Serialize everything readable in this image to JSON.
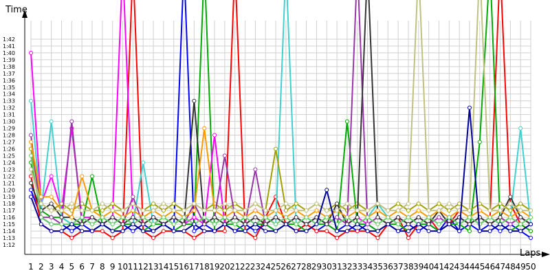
{
  "chart_data": {
    "type": "line",
    "ylabel": "Time",
    "xlabel": "Laps",
    "x": [
      1,
      2,
      3,
      4,
      5,
      6,
      7,
      8,
      9,
      10,
      11,
      12,
      13,
      14,
      15,
      16,
      17,
      18,
      19,
      20,
      21,
      22,
      23,
      24,
      25,
      26,
      27,
      28,
      29,
      30,
      31,
      32,
      33,
      34,
      35,
      36,
      37,
      38,
      39,
      40,
      41,
      42,
      43,
      44,
      45,
      46,
      47,
      48,
      49,
      50
    ],
    "y_tick_labels": [
      "1:12",
      "1:13",
      "1:14",
      "1:15",
      "1:16",
      "1:17",
      "1:18",
      "1:19",
      "1:20",
      "1:21",
      "1:22",
      "1:23",
      "1:24",
      "1:25",
      "1:26",
      "1:27",
      "1:28",
      "1:29",
      "1:30",
      "1:31",
      "1:32",
      "1:33",
      "1:34",
      "1:35",
      "1:36",
      "1:37",
      "1:38",
      "1:39",
      "1:40",
      "1:41",
      "1:42"
    ],
    "ylim": [
      71,
      105
    ],
    "xlim": [
      1,
      50
    ],
    "grid": true,
    "series": [
      {
        "color": "#0000ff",
        "values": [
          80,
          76,
          75,
          75,
          74,
          75,
          74,
          75,
          74,
          75,
          74,
          75,
          74,
          75,
          74,
          120,
          74,
          75,
          74,
          75,
          74,
          75,
          74,
          75,
          74,
          75,
          74,
          75,
          74,
          75,
          74,
          75,
          74,
          75,
          74,
          75,
          74,
          75,
          74,
          75,
          74,
          76,
          74,
          75,
          74,
          75,
          74,
          75,
          74,
          73
        ]
      },
      {
        "color": "#ff0000",
        "values": [
          82,
          75,
          74,
          74,
          73,
          74,
          74,
          74,
          73,
          74,
          120,
          74,
          73,
          74,
          74,
          74,
          73,
          74,
          74,
          74,
          120,
          74,
          73,
          76,
          79,
          75,
          74,
          75,
          74,
          74,
          73,
          74,
          74,
          74,
          73,
          75,
          76,
          73,
          75,
          76,
          74,
          75,
          77,
          76,
          75,
          76,
          120,
          78,
          75,
          74
        ]
      },
      {
        "color": "#00aa00",
        "values": [
          84,
          77,
          76,
          76,
          75,
          75,
          82,
          75,
          74,
          75,
          75,
          74,
          75,
          75,
          74,
          75,
          75,
          120,
          74,
          75,
          75,
          74,
          75,
          75,
          74,
          75,
          75,
          74,
          75,
          75,
          74,
          90,
          75,
          75,
          74,
          75,
          75,
          74,
          75,
          75,
          74,
          75,
          75,
          74,
          87,
          120,
          75,
          74,
          75,
          74
        ]
      },
      {
        "color": "#ff00ff",
        "values": [
          100,
          78,
          82,
          77,
          89,
          76,
          76,
          75,
          76,
          120,
          76,
          75,
          76,
          75,
          76,
          75,
          76,
          75,
          88,
          75,
          76,
          75,
          76,
          75,
          76,
          75,
          76,
          75,
          76,
          75,
          76,
          75,
          76,
          75,
          76,
          75,
          76,
          75,
          76,
          75,
          76,
          75,
          76,
          75,
          76,
          75,
          76,
          75,
          76,
          75
        ]
      },
      {
        "color": "#40d0d0",
        "values": [
          93,
          77,
          90,
          76,
          75,
          76,
          75,
          76,
          75,
          76,
          75,
          84,
          75,
          76,
          75,
          76,
          75,
          76,
          75,
          76,
          75,
          76,
          75,
          76,
          75,
          120,
          75,
          76,
          75,
          76,
          75,
          76,
          75,
          76,
          78,
          76,
          75,
          76,
          75,
          76,
          75,
          76,
          75,
          76,
          75,
          76,
          75,
          76,
          89,
          75
        ]
      },
      {
        "color": "#a0a000",
        "values": [
          86,
          78,
          77,
          78,
          77,
          78,
          77,
          77,
          78,
          77,
          78,
          77,
          78,
          77,
          78,
          77,
          78,
          77,
          78,
          77,
          78,
          77,
          78,
          77,
          86,
          77,
          78,
          77,
          78,
          77,
          78,
          77,
          78,
          77,
          78,
          77,
          78,
          77,
          78,
          77,
          78,
          77,
          78,
          77,
          78,
          77,
          78,
          77,
          78,
          77
        ]
      },
      {
        "color": "#9933aa",
        "values": [
          88,
          76,
          76,
          75,
          90,
          75,
          76,
          75,
          76,
          75,
          79,
          75,
          76,
          75,
          76,
          75,
          78,
          75,
          76,
          85,
          76,
          75,
          83,
          75,
          76,
          75,
          76,
          75,
          76,
          75,
          76,
          75,
          120,
          75,
          76,
          75,
          76,
          75,
          76,
          75,
          76,
          75,
          76,
          75,
          76,
          75,
          76,
          75,
          76,
          75
        ]
      },
      {
        "color": "#333333",
        "values": [
          81,
          77,
          78,
          76,
          76,
          75,
          76,
          75,
          76,
          75,
          76,
          75,
          76,
          75,
          76,
          75,
          93,
          75,
          76,
          75,
          76,
          75,
          76,
          75,
          76,
          75,
          76,
          75,
          76,
          75,
          78,
          75,
          76,
          120,
          76,
          75,
          76,
          75,
          76,
          75,
          77,
          75,
          76,
          75,
          76,
          75,
          76,
          79,
          76,
          75
        ]
      },
      {
        "color": "#ff9900",
        "values": [
          87,
          79,
          79,
          77,
          76,
          82,
          77,
          76,
          77,
          76,
          77,
          76,
          77,
          76,
          77,
          76,
          77,
          89,
          77,
          76,
          77,
          76,
          77,
          76,
          77,
          76,
          77,
          76,
          77,
          76,
          77,
          76,
          77,
          76,
          77,
          76,
          77,
          76,
          77,
          76,
          77,
          76,
          77,
          76,
          77,
          76,
          77,
          76,
          77,
          76
        ]
      },
      {
        "color": "#66cc66",
        "values": [
          85,
          76,
          75,
          75,
          75,
          76,
          75,
          76,
          75,
          76,
          75,
          76,
          75,
          76,
          75,
          76,
          75,
          76,
          75,
          76,
          75,
          76,
          75,
          76,
          75,
          76,
          75,
          76,
          75,
          76,
          75,
          76,
          75,
          76,
          75,
          76,
          75,
          76,
          75,
          76,
          75,
          76,
          75,
          76,
          75,
          76,
          75,
          76,
          75,
          76
        ]
      },
      {
        "color": "#c0c080",
        "values": [
          83,
          78,
          77,
          77,
          78,
          77,
          77,
          78,
          77,
          77,
          78,
          77,
          77,
          78,
          77,
          77,
          78,
          77,
          77,
          78,
          77,
          77,
          78,
          77,
          77,
          78,
          77,
          77,
          78,
          77,
          77,
          78,
          77,
          77,
          78,
          77,
          77,
          78,
          120,
          77,
          77,
          78,
          77,
          77,
          120,
          77,
          77,
          78,
          77,
          77
        ]
      },
      {
        "color": "#000099",
        "values": [
          79,
          75,
          74,
          74,
          75,
          74,
          74,
          75,
          74,
          74,
          75,
          74,
          74,
          75,
          74,
          74,
          75,
          74,
          74,
          75,
          74,
          74,
          75,
          74,
          74,
          75,
          74,
          74,
          75,
          80,
          74,
          74,
          75,
          74,
          74,
          75,
          74,
          74,
          75,
          74,
          74,
          75,
          74,
          92,
          74,
          74,
          75,
          74,
          74,
          75
        ]
      }
    ]
  }
}
